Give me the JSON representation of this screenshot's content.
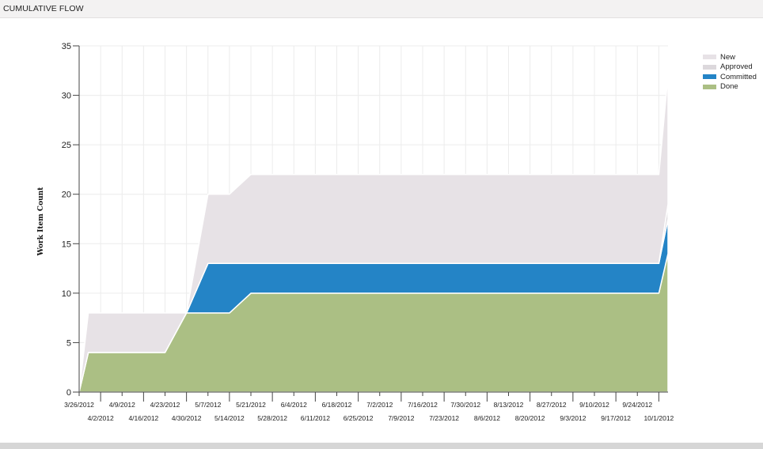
{
  "window": {
    "title": "CUMULATIVE FLOW"
  },
  "colors": {
    "New": "#e7e2e6",
    "Approved": "#dcd8dc",
    "Committed": "#2484c6",
    "Done": "#abbf84"
  },
  "chart_data": {
    "type": "area",
    "stacked": true,
    "title": "",
    "xlabel": "",
    "ylabel": "Work Item Count",
    "ylim": [
      0,
      35
    ],
    "yticks": [
      0,
      5,
      10,
      15,
      20,
      25,
      30,
      35
    ],
    "grid": true,
    "legend_position": "top-right",
    "x_tick_labels": [
      "3/26/2012",
      "4/2/2012",
      "4/9/2012",
      "4/16/2012",
      "4/23/2012",
      "4/30/2012",
      "5/7/2012",
      "5/14/2012",
      "5/21/2012",
      "5/28/2012",
      "6/4/2012",
      "6/11/2012",
      "6/18/2012",
      "6/25/2012",
      "7/2/2012",
      "7/9/2012",
      "7/16/2012",
      "7/23/2012",
      "7/30/2012",
      "8/6/2012",
      "8/13/2012",
      "8/20/2012",
      "8/27/2012",
      "9/3/2012",
      "9/10/2012",
      "9/17/2012",
      "9/24/2012",
      "10/1/2012"
    ],
    "x": [
      "3/26/2012",
      "3/29/2012",
      "4/23/2012",
      "4/30/2012",
      "5/7/2012",
      "5/14/2012",
      "5/21/2012",
      "6/4/2012",
      "7/2/2012",
      "8/6/2012",
      "9/3/2012",
      "10/1/2012",
      "10/4/2012"
    ],
    "series": [
      {
        "name": "Done",
        "values": [
          0,
          4,
          4,
          8,
          8,
          8,
          10,
          10,
          10,
          10,
          10,
          10,
          14
        ]
      },
      {
        "name": "Committed",
        "values": [
          0,
          0,
          0,
          0,
          5,
          5,
          3,
          3,
          3,
          3,
          3,
          3,
          3.5
        ]
      },
      {
        "name": "Approved",
        "values": [
          0,
          0,
          0,
          0,
          0,
          0,
          0,
          0,
          0,
          0,
          0,
          0,
          1.5
        ]
      },
      {
        "name": "New",
        "values": [
          0,
          4,
          4,
          0,
          7,
          7,
          9,
          9,
          9,
          9,
          9,
          9,
          13
        ]
      }
    ]
  }
}
